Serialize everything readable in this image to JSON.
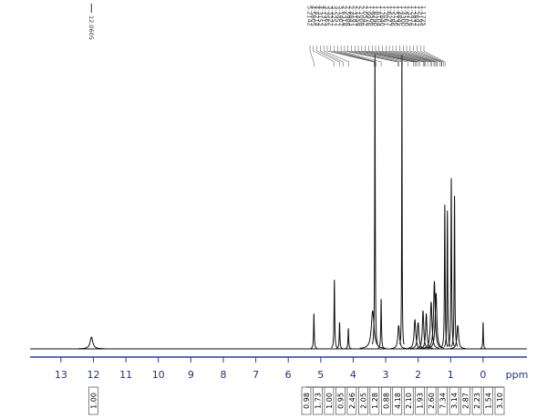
{
  "chart_data": {
    "type": "nmr",
    "x_label": "ppm",
    "xlim": [
      13.95,
      -1.35
    ],
    "xticks": [
      13,
      12,
      11,
      10,
      9,
      8,
      7,
      6,
      5,
      4,
      3,
      2,
      1,
      0
    ],
    "ylim": [
      0,
      100
    ],
    "trace_color": "#111111",
    "axis_color": "#2a3f9a",
    "peaks": {
      "ppm": [
        12.06,
        5.21,
        4.58,
        4.42,
        4.15,
        3.4,
        3.33,
        3.14,
        2.6,
        2.5,
        2.1,
        2.0,
        1.85,
        1.75,
        1.6,
        1.5,
        1.45,
        1.18,
        1.1,
        0.98,
        0.88,
        0.78,
        0.0
      ],
      "heights": [
        4,
        12,
        23.5,
        9,
        7,
        13,
        100,
        17,
        8,
        100,
        10,
        9,
        13,
        12,
        16,
        23,
        19,
        49,
        47,
        58,
        52,
        8,
        9
      ],
      "widths": [
        0.05,
        0.012,
        0.012,
        0.012,
        0.012,
        0.05,
        0.01,
        0.012,
        0.03,
        0.008,
        0.03,
        0.03,
        0.025,
        0.025,
        0.03,
        0.03,
        0.03,
        0.012,
        0.012,
        0.012,
        0.012,
        0.03,
        0.01
      ]
    },
    "peak_labels": {
      "single": [
        12.0605
      ],
      "cluster": [
        5.2142,
        4.5805,
        4.4214,
        4.3152,
        4.1312,
        3.3565,
        3.3322,
        3.3257,
        3.2957,
        3.1407,
        2.6318,
        2.5988,
        2.4843,
        2.3187,
        2.1459,
        2.1008,
        2.0542,
        1.9976,
        1.9506,
        {
          "value": 1.829,
          "label": "1.8290"
        },
        1.8104,
        {
          "value": 1.784,
          "label": "1.7840"
        },
        1.7061,
        1.6227,
        1.5786,
        1.5136,
        1.4845,
        {
          "value": 1.43,
          "label": "1.4300"
        },
        {
          "value": 1.41,
          "label": "1.4100"
        },
        1.3219,
        1.2832,
        1.2692,
        1.2195,
        1.1725
      ]
    },
    "integrals": {
      "values": [
        1,
        0.98,
        1.73,
        1,
        0.95,
        2.46,
        2.05,
        1.28,
        0.88,
        4.18,
        2.1,
        1.93,
        2.6,
        7.34,
        3.14,
        2.87,
        2.23,
        1.54,
        3.1
      ],
      "value_labels": [
        "1.00",
        "0.98",
        "1.73",
        "1.00",
        "0.95",
        "2.46",
        "2.05",
        "1.28",
        "0.88",
        "4.18",
        "2.10",
        "1.93",
        "2.60",
        "7.34",
        "3.14",
        "2.87",
        "2.23",
        "1.54",
        "3.10"
      ]
    }
  }
}
